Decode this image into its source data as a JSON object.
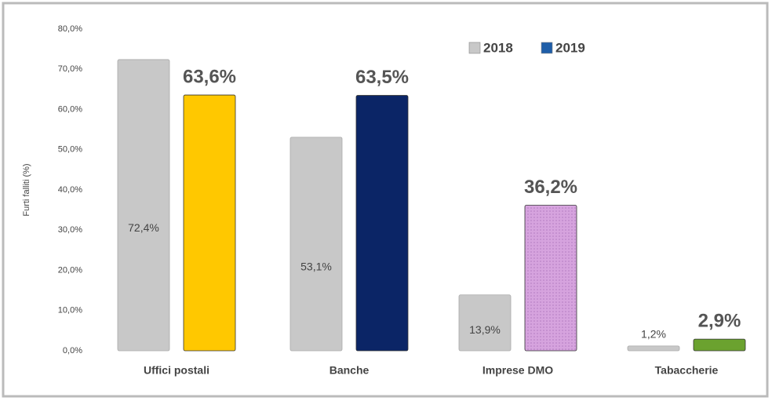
{
  "chart_data": {
    "type": "bar",
    "y_label": "Furti falliti (%)",
    "categories": [
      "Uffici postali",
      "Banche",
      "Imprese DMO",
      "Tabaccherie"
    ],
    "series": [
      {
        "name": "2018",
        "color": "#c8c8c8",
        "values": [
          72.4,
          53.1,
          13.9,
          1.2
        ],
        "value_labels": [
          "72,4%",
          "53,1%",
          "13,9%",
          "1,2%"
        ],
        "bar_colors": [
          "#c8c8c8",
          "#c8c8c8",
          "#c8c8c8",
          "#c8c8c8"
        ]
      },
      {
        "name": "2019",
        "color": "#1f5ea8",
        "values": [
          63.6,
          63.5,
          36.2,
          2.9
        ],
        "value_labels": [
          "63,6%",
          "63,5%",
          "36,2%",
          "2,9%"
        ],
        "bar_colors": [
          "#ffc800",
          "#0b2566",
          "#d6a3de",
          "#6ba22f"
        ]
      }
    ],
    "ylim": [
      0,
      80
    ],
    "yticks": [
      {
        "value": 0,
        "label": "0,0%"
      },
      {
        "value": 10,
        "label": "10,0%"
      },
      {
        "value": 20,
        "label": "20,0%"
      },
      {
        "value": 30,
        "label": "30,0%"
      },
      {
        "value": 40,
        "label": "40,0%"
      },
      {
        "value": 50,
        "label": "50,0%"
      },
      {
        "value": 60,
        "label": "60,0%"
      },
      {
        "value": 70,
        "label": "70,0%"
      },
      {
        "value": 80,
        "label": "80,0%"
      }
    ],
    "legend": "top-right"
  }
}
